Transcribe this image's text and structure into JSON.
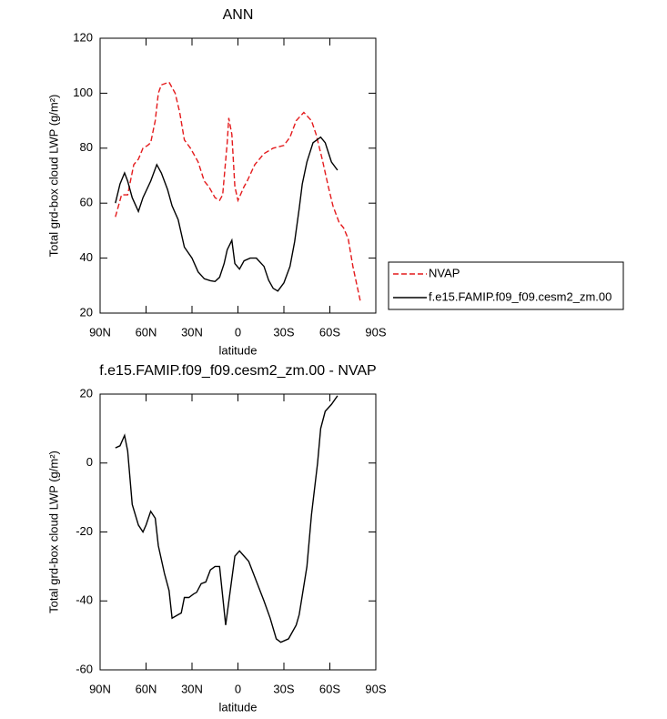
{
  "chart_data": [
    {
      "type": "line",
      "title": "ANN",
      "xlabel": "latitude",
      "ylabel": "Total grd-box cloud LWP (g/m²)",
      "xlim": [
        90,
        -90
      ],
      "xticks": [
        {
          "value": 90,
          "label": "90N"
        },
        {
          "value": 60,
          "label": "60N"
        },
        {
          "value": 30,
          "label": "30N"
        },
        0,
        {
          "value": -30,
          "label": "30S"
        },
        {
          "value": -60,
          "label": "60S"
        },
        {
          "value": -90,
          "label": "90S"
        }
      ],
      "ylim": [
        20,
        120
      ],
      "yticks": [
        20,
        40,
        60,
        80,
        100,
        120
      ],
      "legend": "right",
      "series": [
        {
          "name": "NVAP",
          "color": "#e41a1c",
          "style": "dashed",
          "x": [
            80,
            76,
            72,
            68,
            65,
            62,
            59,
            57,
            54,
            52,
            50,
            45,
            41,
            38,
            35,
            31,
            26,
            22,
            19,
            15,
            12,
            10,
            7,
            6,
            4,
            2,
            0,
            -4,
            -6,
            -11,
            -17,
            -23,
            -30,
            -34,
            -38,
            -43,
            -48,
            -51,
            -55,
            -59,
            -62,
            -66,
            -69,
            -72,
            -75,
            -80
          ],
          "values": [
            55,
            63,
            63,
            74,
            76,
            80,
            81,
            82,
            90,
            100,
            103,
            104,
            100,
            93,
            83,
            80,
            75,
            68,
            66,
            62,
            61,
            63,
            82,
            91,
            85,
            66,
            61,
            66,
            68,
            74,
            78,
            80,
            81,
            84,
            90,
            93,
            90,
            85,
            76,
            66,
            59,
            53,
            51,
            47,
            37,
            24
          ]
        },
        {
          "name": "f.e15.FAMIP.f09_f09.cesm2_zm.00",
          "color": "#000000",
          "style": "solid",
          "x": [
            80,
            77,
            74,
            72,
            69,
            65,
            62,
            57,
            53,
            50,
            46,
            43,
            39,
            35,
            30,
            26,
            22,
            18,
            15,
            12,
            9,
            7,
            4,
            2,
            -1,
            -4,
            -8,
            -12,
            -17,
            -20,
            -23,
            -26,
            -30,
            -34,
            -37,
            -40,
            -42,
            -45,
            -49,
            -54,
            -57,
            -61,
            -65
          ],
          "values": [
            60,
            67,
            71,
            68,
            62,
            57,
            62,
            68,
            74,
            71,
            65,
            59,
            54,
            44,
            40,
            35,
            32.5,
            31.8,
            31.5,
            33,
            38,
            43,
            46.5,
            38,
            36,
            39,
            40,
            40,
            37,
            32,
            29,
            28,
            31,
            37,
            46,
            58,
            67,
            75,
            82,
            84,
            82,
            75,
            72
          ]
        }
      ]
    },
    {
      "type": "line",
      "title": "f.e15.FAMIP.f09_f09.cesm2_zm.00 - NVAP",
      "xlabel": "latitude",
      "ylabel": "Total grd-box cloud LWP (g/m²)",
      "xlim": [
        90,
        -90
      ],
      "xticks": [
        {
          "value": 90,
          "label": "90N"
        },
        {
          "value": 60,
          "label": "60N"
        },
        {
          "value": 30,
          "label": "30N"
        },
        0,
        {
          "value": -30,
          "label": "30S"
        },
        {
          "value": -60,
          "label": "60S"
        },
        {
          "value": -90,
          "label": "90S"
        }
      ],
      "ylim": [
        -60,
        20
      ],
      "yticks": [
        -60,
        -40,
        -20,
        0,
        20
      ],
      "series": [
        {
          "color": "#000000",
          "style": "solid",
          "x": [
            80,
            77,
            74,
            72,
            69,
            65,
            62,
            60,
            57,
            54,
            52,
            48,
            45,
            43,
            39,
            37,
            35,
            32,
            29,
            27,
            24,
            21,
            18,
            15,
            12,
            8,
            2,
            -1,
            -4,
            -7,
            -17,
            -21,
            -25,
            -28,
            -33,
            -38,
            -40,
            -45,
            -48,
            -52,
            -54,
            -57,
            -61,
            -65
          ],
          "values": [
            4.4,
            5,
            8,
            3.5,
            -12,
            -18,
            -20,
            -18,
            -14,
            -16,
            -24,
            -32,
            -37,
            -45,
            -44,
            -43.5,
            -39,
            -39,
            -38,
            -37.5,
            -35,
            -34.5,
            -31,
            -30,
            -30,
            -47,
            -27,
            -25.5,
            -27,
            -28.5,
            -40,
            -45,
            -51,
            -52,
            -51,
            -47,
            -44,
            -30,
            -15,
            0,
            10,
            15,
            17,
            19.5
          ]
        }
      ]
    }
  ]
}
